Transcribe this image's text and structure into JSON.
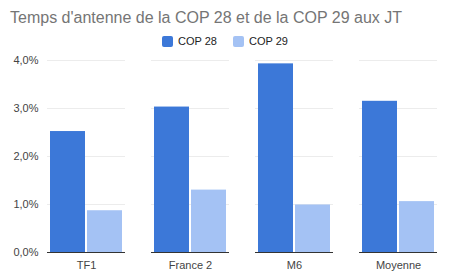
{
  "chart_data": {
    "type": "bar",
    "title": "Temps d'antenne de la COP 28 et de la COP 29 aux JT",
    "categories": [
      "TF1",
      "France 2",
      "M6",
      "Moyenne"
    ],
    "series": [
      {
        "name": "COP 28",
        "color": "#3c78d8",
        "values": [
          2.52,
          3.03,
          3.93,
          3.15
        ]
      },
      {
        "name": "COP 29",
        "color": "#a4c2f4",
        "values": [
          0.87,
          1.3,
          0.99,
          1.06
        ]
      }
    ],
    "ylim": [
      0,
      4
    ],
    "yticks": [
      {
        "value": 0,
        "label": "0,0%"
      },
      {
        "value": 1,
        "label": "1,0%"
      },
      {
        "value": 2,
        "label": "2,0%"
      },
      {
        "value": 3,
        "label": "3,0%"
      },
      {
        "value": 4,
        "label": "4,0%"
      }
    ],
    "grid": true,
    "legend": "top"
  }
}
